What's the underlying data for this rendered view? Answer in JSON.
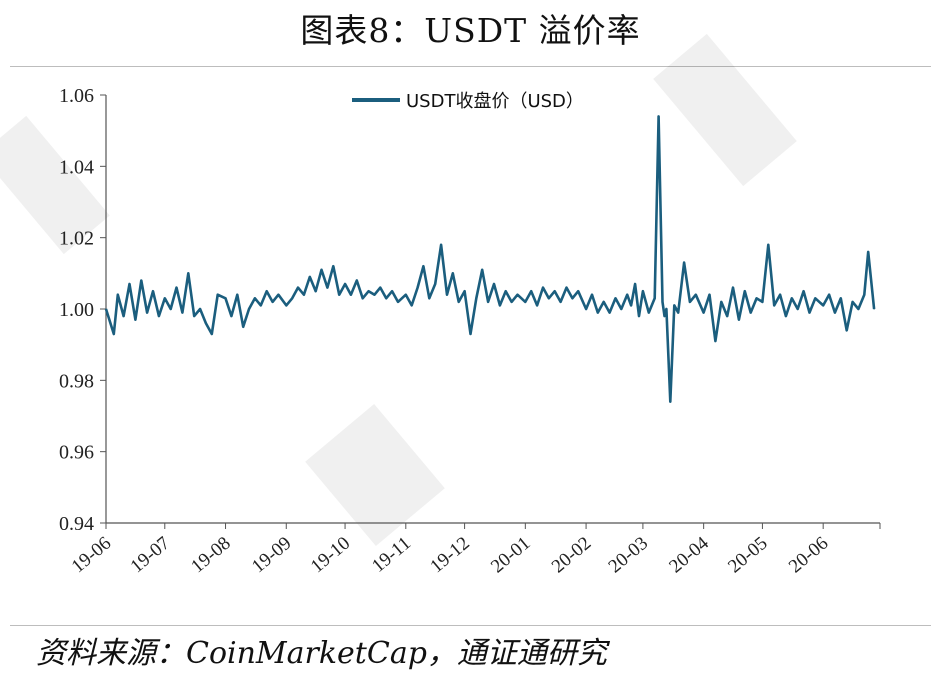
{
  "figure": {
    "title": "图表8：USDT 溢价率",
    "source": "资料来源：CoinMarketCap，通证通研究"
  },
  "colors": {
    "series": "#1b5e7e",
    "axis": "#555555",
    "rule": "#bdbdbd"
  },
  "chart_data": {
    "type": "line",
    "title": "",
    "xlabel": "",
    "ylabel": "",
    "ylim": [
      0.94,
      1.06
    ],
    "yticks": [
      "0.94",
      "0.96",
      "0.98",
      "1.00",
      "1.02",
      "1.04",
      "1.06"
    ],
    "xticks": [
      "19-06",
      "19-07",
      "19-08",
      "19-09",
      "19-10",
      "19-11",
      "19-12",
      "20-01",
      "20-02",
      "20-03",
      "20-04",
      "20-05",
      "20-06"
    ],
    "grid": false,
    "legend": "top-center",
    "series": [
      {
        "name": "USDT收盘价（USD）",
        "x": [
          "2019-06-01",
          "2019-06-05",
          "2019-06-07",
          "2019-06-10",
          "2019-06-13",
          "2019-06-16",
          "2019-06-19",
          "2019-06-22",
          "2019-06-25",
          "2019-06-28",
          "2019-07-01",
          "2019-07-04",
          "2019-07-07",
          "2019-07-10",
          "2019-07-13",
          "2019-07-16",
          "2019-07-19",
          "2019-07-22",
          "2019-07-25",
          "2019-07-28",
          "2019-08-01",
          "2019-08-04",
          "2019-08-07",
          "2019-08-10",
          "2019-08-13",
          "2019-08-16",
          "2019-08-19",
          "2019-08-22",
          "2019-08-25",
          "2019-08-28",
          "2019-09-01",
          "2019-09-04",
          "2019-09-07",
          "2019-09-10",
          "2019-09-13",
          "2019-09-16",
          "2019-09-19",
          "2019-09-22",
          "2019-09-25",
          "2019-09-28",
          "2019-10-01",
          "2019-10-04",
          "2019-10-07",
          "2019-10-10",
          "2019-10-13",
          "2019-10-16",
          "2019-10-19",
          "2019-10-22",
          "2019-10-25",
          "2019-10-28",
          "2019-11-01",
          "2019-11-04",
          "2019-11-07",
          "2019-11-10",
          "2019-11-13",
          "2019-11-16",
          "2019-11-19",
          "2019-11-22",
          "2019-11-25",
          "2019-11-28",
          "2019-12-01",
          "2019-12-04",
          "2019-12-07",
          "2019-12-10",
          "2019-12-13",
          "2019-12-16",
          "2019-12-19",
          "2019-12-22",
          "2019-12-25",
          "2019-12-28",
          "2020-01-01",
          "2020-01-04",
          "2020-01-07",
          "2020-01-10",
          "2020-01-13",
          "2020-01-16",
          "2020-01-19",
          "2020-01-22",
          "2020-01-25",
          "2020-01-28",
          "2020-02-01",
          "2020-02-04",
          "2020-02-07",
          "2020-02-10",
          "2020-02-13",
          "2020-02-16",
          "2020-02-19",
          "2020-02-22",
          "2020-02-24",
          "2020-02-26",
          "2020-02-28",
          "2020-03-01",
          "2020-03-04",
          "2020-03-07",
          "2020-03-09",
          "2020-03-11",
          "2020-03-12",
          "2020-03-13",
          "2020-03-15",
          "2020-03-17",
          "2020-03-19",
          "2020-03-22",
          "2020-03-25",
          "2020-03-28",
          "2020-04-01",
          "2020-04-04",
          "2020-04-07",
          "2020-04-10",
          "2020-04-13",
          "2020-04-16",
          "2020-04-19",
          "2020-04-22",
          "2020-04-25",
          "2020-04-28",
          "2020-05-01",
          "2020-05-04",
          "2020-05-07",
          "2020-05-10",
          "2020-05-13",
          "2020-05-16",
          "2020-05-19",
          "2020-05-22",
          "2020-05-25",
          "2020-05-28",
          "2020-06-01",
          "2020-06-04",
          "2020-06-07",
          "2020-06-10",
          "2020-06-13",
          "2020-06-16",
          "2020-06-19",
          "2020-06-22",
          "2020-06-24",
          "2020-06-27"
        ],
        "values": [
          1.0,
          0.993,
          1.004,
          0.998,
          1.007,
          0.997,
          1.008,
          0.999,
          1.005,
          0.998,
          1.003,
          1.0,
          1.006,
          0.999,
          1.01,
          0.998,
          1.0,
          0.996,
          0.993,
          1.004,
          1.003,
          0.998,
          1.004,
          0.995,
          1.0,
          1.003,
          1.001,
          1.005,
          1.002,
          1.004,
          1.001,
          1.003,
          1.006,
          1.004,
          1.009,
          1.005,
          1.011,
          1.006,
          1.012,
          1.004,
          1.007,
          1.004,
          1.008,
          1.003,
          1.005,
          1.004,
          1.006,
          1.003,
          1.005,
          1.002,
          1.004,
          1.001,
          1.006,
          1.012,
          1.003,
          1.007,
          1.018,
          1.004,
          1.01,
          1.002,
          1.005,
          0.993,
          1.003,
          1.011,
          1.002,
          1.007,
          1.001,
          1.005,
          1.002,
          1.004,
          1.002,
          1.005,
          1.001,
          1.006,
          1.003,
          1.005,
          1.002,
          1.006,
          1.003,
          1.005,
          1.0,
          1.004,
          0.999,
          1.002,
          0.999,
          1.003,
          1.0,
          1.004,
          1.001,
          1.007,
          0.998,
          1.005,
          0.999,
          1.003,
          1.054,
          1.002,
          0.998,
          1.0,
          0.974,
          1.001,
          0.999,
          1.013,
          1.002,
          1.004,
          0.999,
          1.004,
          0.991,
          1.002,
          0.998,
          1.006,
          0.997,
          1.005,
          0.999,
          1.003,
          1.002,
          1.018,
          1.001,
          1.004,
          0.998,
          1.003,
          1.0,
          1.005,
          0.999,
          1.003,
          1.001,
          1.004,
          0.999,
          1.003,
          0.994,
          1.002,
          1.0,
          1.004,
          1.016,
          1.0
        ]
      }
    ]
  }
}
